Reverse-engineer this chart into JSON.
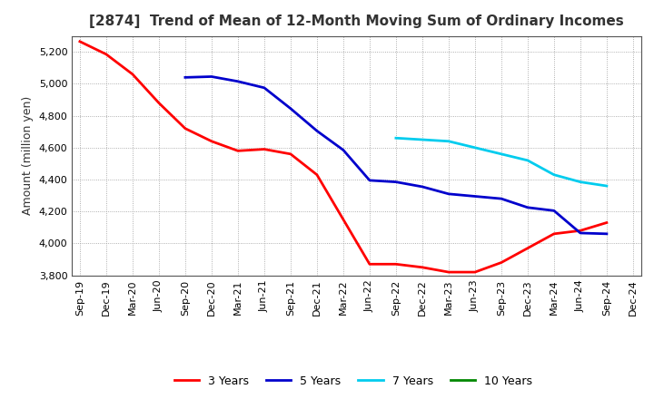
{
  "title": "[2874]  Trend of Mean of 12-Month Moving Sum of Ordinary Incomes",
  "ylabel": "Amount (million yen)",
  "ylim": [
    3800,
    5300
  ],
  "yticks": [
    3800,
    4000,
    4200,
    4400,
    4600,
    4800,
    5000,
    5200
  ],
  "background_color": "#FFFFFF",
  "plot_bg_color": "#FFFFFF",
  "grid_color": "#999999",
  "title_color": "#333333",
  "x_labels": [
    "Sep-19",
    "Dec-19",
    "Mar-20",
    "Jun-20",
    "Sep-20",
    "Dec-20",
    "Mar-21",
    "Jun-21",
    "Sep-21",
    "Dec-21",
    "Mar-22",
    "Jun-22",
    "Sep-22",
    "Dec-22",
    "Mar-23",
    "Jun-23",
    "Sep-23",
    "Dec-23",
    "Mar-24",
    "Jun-24",
    "Sep-24",
    "Dec-24"
  ],
  "series": [
    {
      "label": "3 Years",
      "color": "#FF0000",
      "data_x": [
        0,
        1,
        2,
        3,
        4,
        5,
        6,
        7,
        8,
        9,
        10,
        11,
        12,
        13,
        14,
        15,
        16,
        17,
        18,
        19,
        20
      ],
      "data_y": [
        5265,
        5185,
        5060,
        4880,
        4720,
        4640,
        4580,
        4590,
        4560,
        4430,
        4150,
        3870,
        3870,
        3850,
        3820,
        3820,
        3880,
        3970,
        4060,
        4080,
        4130
      ]
    },
    {
      "label": "5 Years",
      "color": "#0000CC",
      "data_x": [
        4,
        5,
        6,
        7,
        8,
        9,
        10,
        11,
        12,
        13,
        14,
        15,
        16,
        17,
        18,
        19,
        20
      ],
      "data_y": [
        5040,
        5045,
        5015,
        4975,
        4845,
        4705,
        4585,
        4395,
        4385,
        4355,
        4310,
        4295,
        4280,
        4225,
        4205,
        4065,
        4060
      ]
    },
    {
      "label": "7 Years",
      "color": "#00CCEE",
      "data_x": [
        12,
        13,
        14,
        15,
        16,
        17,
        18,
        19,
        20
      ],
      "data_y": [
        4660,
        4650,
        4640,
        4600,
        4560,
        4520,
        4430,
        4385,
        4360
      ]
    },
    {
      "label": "10 Years",
      "color": "#008800",
      "data_x": [],
      "data_y": []
    }
  ],
  "title_fontsize": 11,
  "ylabel_fontsize": 9,
  "tick_fontsize": 8,
  "legend_fontsize": 9
}
